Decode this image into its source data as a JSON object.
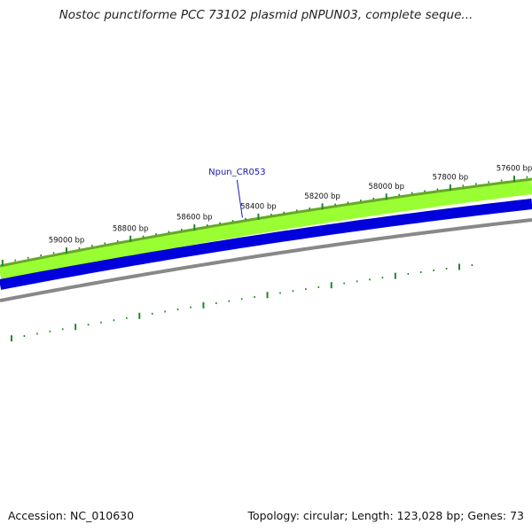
{
  "header": {
    "title": "Nostoc punctiforme PCC 73102 plasmid pNPUN03, complete seque..."
  },
  "footer": {
    "accession": "Accession: NC_010630",
    "summary": "Topology: circular; Length: 123,028 bp; Genes: 73"
  },
  "map": {
    "ticks": [
      {
        "bp": 59000,
        "label": "59000 bp"
      },
      {
        "bp": 58800,
        "label": "58800 bp"
      },
      {
        "bp": 58600,
        "label": "58600 bp"
      },
      {
        "bp": 58400,
        "label": "58400 bp"
      },
      {
        "bp": 58200,
        "label": "58200 bp"
      },
      {
        "bp": 58000,
        "label": "58000 bp"
      },
      {
        "bp": 57800,
        "label": "57800 bp"
      },
      {
        "bp": 57600,
        "label": "57600 bp"
      }
    ],
    "genes": [
      {
        "name": "Npun_CR053",
        "bp": 58450
      }
    ],
    "colors": {
      "outer_track": "#99ff33",
      "outer_track_border": "#66aa22",
      "inner_track": "#0000dd",
      "backbone": "#888888",
      "tick": "#228822",
      "gene_label": "#1a1aa8"
    }
  }
}
